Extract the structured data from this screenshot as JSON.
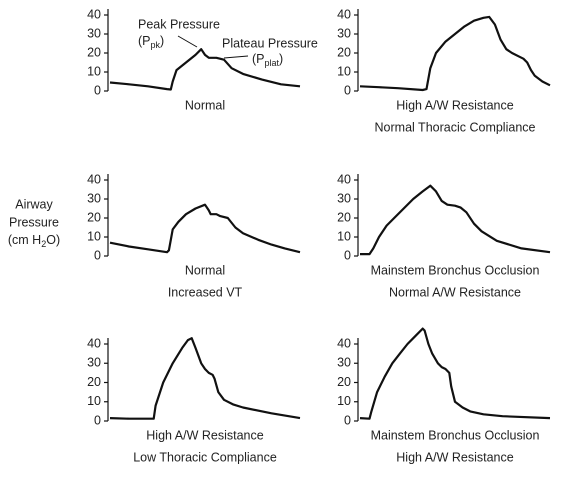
{
  "y_axis_label": {
    "lines": [
      "Airway",
      "Pressure"
    ],
    "unit": {
      "open": "(cm H",
      "sub": "2",
      "close": "O)"
    }
  },
  "chart_data": [
    {
      "type": "line",
      "caption": [
        "Normal"
      ],
      "annotations": [
        {
          "text": "Peak Pressure",
          "open": "(P",
          "sub": "pk",
          "close": ")"
        },
        {
          "text": "Plateau Pressure",
          "open": "(P",
          "sub": "plat",
          "close": ")"
        }
      ],
      "xlim": [
        0,
        100
      ],
      "ylim": [
        0,
        40
      ],
      "yticks": [
        0,
        10,
        20,
        30,
        40
      ],
      "series": [
        {
          "color": "#111",
          "x": [
            0,
            10,
            20,
            30,
            32,
            33,
            35,
            40,
            45,
            48,
            50,
            52,
            56,
            60,
            64,
            70,
            80,
            90,
            100
          ],
          "values": [
            4.5,
            3.5,
            2.5,
            1,
            0.8,
            5,
            11,
            15,
            19,
            22,
            19,
            17.5,
            17.5,
            16.5,
            12,
            9,
            6,
            3.5,
            2.5
          ]
        }
      ]
    },
    {
      "type": "line",
      "caption": [
        "High A/W Resistance",
        "Normal Thoracic Compliance"
      ],
      "xlim": [
        0,
        100
      ],
      "ylim": [
        0,
        40
      ],
      "yticks": [
        0,
        10,
        20,
        30,
        40
      ],
      "series": [
        {
          "color": "#111",
          "x": [
            0,
            10,
            20,
            33,
            35,
            37,
            40,
            45,
            50,
            55,
            60,
            65,
            68,
            71,
            74,
            77,
            80,
            84,
            86,
            88,
            90,
            92,
            96,
            100
          ],
          "values": [
            2.5,
            2,
            1.5,
            0.5,
            1,
            12,
            20,
            26,
            30,
            34,
            37,
            38.5,
            39,
            35,
            27,
            22,
            20,
            18,
            17,
            15,
            11,
            8,
            5,
            3
          ]
        }
      ]
    },
    {
      "type": "line",
      "caption": [
        "Normal",
        "Increased VT"
      ],
      "xlim": [
        0,
        100
      ],
      "ylim": [
        0,
        40
      ],
      "yticks": [
        0,
        10,
        20,
        30,
        40
      ],
      "series": [
        {
          "color": "#111",
          "x": [
            0,
            10,
            20,
            30,
            31,
            33,
            36,
            40,
            45,
            50,
            52,
            53,
            56,
            58,
            62,
            66,
            70,
            78,
            85,
            92,
            100
          ],
          "values": [
            7,
            5,
            3.5,
            2,
            3,
            14,
            18,
            22,
            25,
            27,
            24,
            22,
            22,
            21,
            20,
            15,
            12,
            8.5,
            6,
            4,
            2
          ]
        }
      ]
    },
    {
      "type": "line",
      "caption": [
        "Mainstem Bronchus Occlusion",
        "Normal A/W Resistance"
      ],
      "xlim": [
        0,
        100
      ],
      "ylim": [
        0,
        40
      ],
      "yticks": [
        0,
        10,
        20,
        30,
        40
      ],
      "series": [
        {
          "color": "#111",
          "x": [
            0,
            5,
            7,
            10,
            14,
            18,
            23,
            28,
            33,
            37,
            40,
            43,
            46,
            50,
            53,
            56,
            60,
            64,
            72,
            85,
            100
          ],
          "values": [
            1,
            1,
            4,
            10,
            16,
            20,
            25,
            30,
            34,
            37,
            34,
            29,
            27,
            26.5,
            25.5,
            23,
            17,
            13,
            8,
            4,
            2
          ]
        }
      ]
    },
    {
      "type": "line",
      "caption": [
        "High A/W Resistance",
        "Low Thoracic Compliance"
      ],
      "xlim": [
        0,
        100
      ],
      "ylim": [
        0,
        40
      ],
      "yticks": [
        0,
        10,
        20,
        30,
        40
      ],
      "series": [
        {
          "color": "#111",
          "x": [
            0,
            10,
            23,
            24,
            28,
            33,
            38,
            41,
            43,
            45,
            48,
            50,
            52,
            54,
            55,
            57,
            60,
            65,
            70,
            85,
            100
          ],
          "values": [
            1.5,
            1.2,
            1.2,
            8,
            20,
            30,
            38,
            42,
            43,
            38,
            30,
            27,
            25,
            24,
            22,
            15,
            11,
            8.5,
            7,
            4,
            1.5
          ]
        }
      ]
    },
    {
      "type": "line",
      "caption": [
        "Mainstem Bronchus Occlusion",
        "High A/W Resistance"
      ],
      "xlim": [
        0,
        100
      ],
      "ylim": [
        0,
        40
      ],
      "yticks": [
        0,
        10,
        20,
        30,
        40
      ],
      "series": [
        {
          "color": "#111",
          "x": [
            0,
            5,
            6,
            9,
            13,
            17,
            21,
            25,
            29,
            33,
            34,
            36,
            38,
            41,
            43,
            45,
            47,
            48,
            50,
            54,
            58,
            65,
            75,
            100
          ],
          "values": [
            1.5,
            1.2,
            5,
            15,
            23,
            30,
            35,
            40,
            44,
            48,
            47,
            40,
            35,
            30,
            28,
            27,
            25,
            18,
            10,
            7,
            5,
            3.5,
            2.5,
            1.5
          ]
        }
      ]
    }
  ]
}
